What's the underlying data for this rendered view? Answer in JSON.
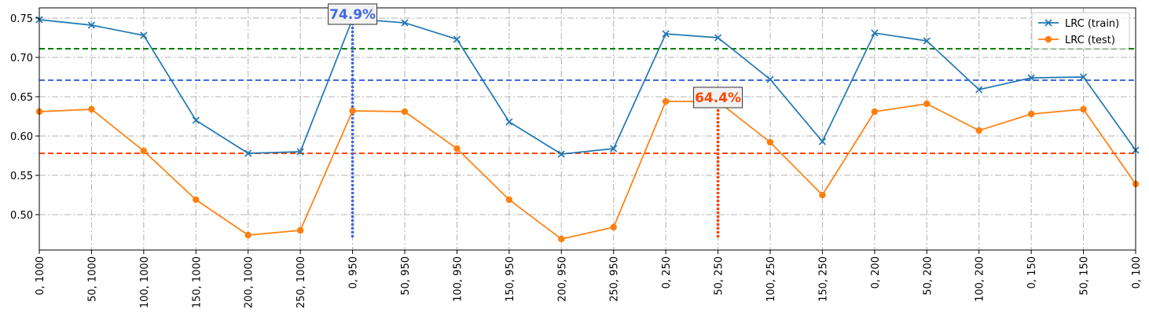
{
  "chart_data": {
    "type": "line",
    "title": "",
    "xlabel": "",
    "ylabel": "",
    "categories": [
      "0, 1000",
      "50, 1000",
      "100, 1000",
      "150, 1000",
      "200, 1000",
      "250, 1000",
      "0, 950",
      "50, 950",
      "100, 950",
      "150, 950",
      "200, 950",
      "250, 950",
      "0, 250",
      "50, 250",
      "100, 250",
      "150, 250",
      "0, 200",
      "50, 200",
      "100, 200",
      "0, 150",
      "50, 150",
      "0, 100"
    ],
    "ylim": [
      0.455,
      0.763
    ],
    "yticks": [
      0.5,
      0.55,
      0.6,
      0.65,
      0.7,
      0.75
    ],
    "ytick_labels": [
      "0.50",
      "0.55",
      "0.60",
      "0.65",
      "0.70",
      "0.75"
    ],
    "grid": true,
    "legend_position": "top-right",
    "series": [
      {
        "name": "LRC (train)",
        "color": "#1f77b4",
        "marker": "x",
        "values": [
          0.748,
          0.741,
          0.728,
          0.62,
          0.578,
          0.58,
          0.749,
          0.744,
          0.723,
          0.618,
          0.577,
          0.584,
          0.73,
          0.725,
          0.672,
          0.593,
          0.731,
          0.721,
          0.659,
          0.674,
          0.675,
          0.582
        ]
      },
      {
        "name": "LRC (test)",
        "color": "#ff7f0e",
        "marker": "o",
        "values": [
          0.631,
          0.634,
          0.581,
          0.519,
          0.474,
          0.48,
          0.632,
          0.631,
          0.584,
          0.519,
          0.469,
          0.484,
          0.644,
          0.644,
          0.592,
          0.525,
          0.631,
          0.641,
          0.607,
          0.628,
          0.634,
          0.539
        ]
      }
    ],
    "reference_lines": [
      {
        "y": 0.711,
        "color": "#008000"
      },
      {
        "y": 0.671,
        "color": "#4169e1"
      },
      {
        "y": 0.578,
        "color": "#ff4500"
      }
    ],
    "annotations": [
      {
        "text": "74.9%",
        "x_index": 6,
        "y": 0.749,
        "color": "#4169e1"
      },
      {
        "text": "64.4%",
        "x_index": 13,
        "y": 0.644,
        "color": "#ff4500"
      }
    ]
  }
}
